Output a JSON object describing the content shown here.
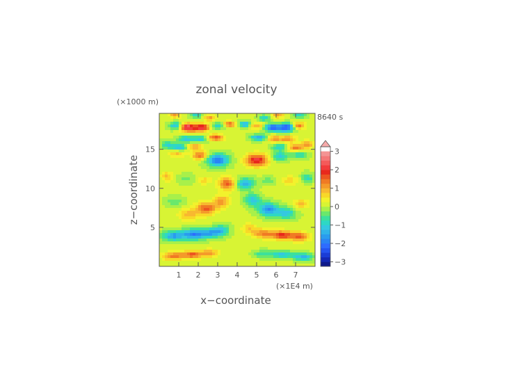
{
  "chart_data": {
    "type": "heatmap",
    "title": "zonal velocity",
    "time_label": "8640 s",
    "xlabel": "x−coordinate",
    "ylabel": "z−coordinate",
    "x_unit": "(×1E4 m)",
    "y_unit": "(×1000 m)",
    "xlim": [
      0,
      8
    ],
    "ylim": [
      0,
      19.6
    ],
    "x_ticks": [
      1,
      2,
      3,
      4,
      5,
      6,
      7
    ],
    "y_ticks": [
      5,
      10,
      15
    ],
    "colorbar": {
      "levels": [
        -3.25,
        -3,
        -2.75,
        -2.5,
        -2.25,
        -2,
        -1.75,
        -1.5,
        -1.25,
        -1,
        -0.75,
        -0.5,
        -0.25,
        0,
        0.25,
        0.5,
        0.75,
        1,
        1.25,
        1.5,
        1.75,
        2,
        2.25,
        2.5,
        2.75,
        3,
        3.25,
        3.5
      ],
      "colors": [
        "#101a8c",
        "#1428b4",
        "#1a3cd6",
        "#2454f0",
        "#2e6cff",
        "#2a84f4",
        "#2a9cee",
        "#30b4e8",
        "#34c8e0",
        "#2ed8c4",
        "#3ce09c",
        "#6ae86c",
        "#a8f04a",
        "#d8f434",
        "#f2f22c",
        "#f8d828",
        "#f8b830",
        "#f49a2a",
        "#f07a24",
        "#ec5420",
        "#e8281c",
        "#f23c3c",
        "#f45a5a",
        "#f47878",
        "#f49494",
        "#f6aaaa"
      ],
      "tick_values": [
        3,
        2,
        1,
        0,
        -1,
        -2,
        -3
      ],
      "tick_labels": [
        "3",
        "2",
        "1",
        "0",
        "−1",
        "−2",
        "−3"
      ],
      "extend_max": true
    },
    "anomalies": [
      {
        "x": 0.7,
        "z": 1.3,
        "sx": 0.55,
        "sz": 0.5,
        "u": 1.3
      },
      {
        "x": 1.7,
        "z": 1.5,
        "sx": 0.55,
        "sz": 0.5,
        "u": 1.5
      },
      {
        "x": 2.6,
        "z": 1.7,
        "sx": 0.45,
        "sz": 0.5,
        "u": 1.0
      },
      {
        "x": 0.7,
        "z": 3.9,
        "sx": 0.55,
        "sz": 0.6,
        "u": -1.6
      },
      {
        "x": 1.8,
        "z": 4.1,
        "sx": 0.65,
        "sz": 0.65,
        "u": -2.0
      },
      {
        "x": 2.8,
        "z": 4.3,
        "sx": 0.55,
        "sz": 0.6,
        "u": -1.4
      },
      {
        "x": 3.2,
        "z": 4.8,
        "sx": 0.4,
        "sz": 0.6,
        "u": -0.8
      },
      {
        "x": 1.5,
        "z": 6.6,
        "sx": 0.5,
        "sz": 0.7,
        "u": 0.9
      },
      {
        "x": 2.4,
        "z": 7.4,
        "sx": 0.5,
        "sz": 0.8,
        "u": 1.6
      },
      {
        "x": 3.2,
        "z": 8.3,
        "sx": 0.4,
        "sz": 0.8,
        "u": 1.1
      },
      {
        "x": 3.5,
        "z": 10.6,
        "sx": 0.45,
        "sz": 0.8,
        "u": 1.5
      },
      {
        "x": 0.8,
        "z": 8.3,
        "sx": 0.45,
        "sz": 0.6,
        "u": -0.5
      },
      {
        "x": 1.4,
        "z": 11.2,
        "sx": 0.45,
        "sz": 0.6,
        "u": -0.4
      },
      {
        "x": 0.4,
        "z": 11.5,
        "sx": 0.3,
        "sz": 0.6,
        "u": 0.8
      },
      {
        "x": 2.3,
        "z": 11.0,
        "sx": 0.35,
        "sz": 0.5,
        "u": 0.6
      },
      {
        "x": 0.9,
        "z": 14.5,
        "sx": 0.4,
        "sz": 0.55,
        "u": 0.8
      },
      {
        "x": 2.1,
        "z": 14.2,
        "sx": 0.4,
        "sz": 0.55,
        "u": 1.4
      },
      {
        "x": 3.0,
        "z": 13.6,
        "sx": 0.55,
        "sz": 0.8,
        "u": -2.0
      },
      {
        "x": 0.4,
        "z": 15.6,
        "sx": 0.3,
        "sz": 0.5,
        "u": -1.0
      },
      {
        "x": 1.0,
        "z": 15.2,
        "sx": 0.4,
        "sz": 0.45,
        "u": -1.5
      },
      {
        "x": 1.8,
        "z": 15.3,
        "sx": 0.4,
        "sz": 0.5,
        "u": 1.0
      },
      {
        "x": 1.4,
        "z": 16.3,
        "sx": 0.4,
        "sz": 0.45,
        "u": -1.2
      },
      {
        "x": 2.1,
        "z": 16.3,
        "sx": 0.35,
        "sz": 0.45,
        "u": -1.1
      },
      {
        "x": 2.9,
        "z": 16.5,
        "sx": 0.4,
        "sz": 0.4,
        "u": 1.6
      },
      {
        "x": 1.6,
        "z": 17.4,
        "sx": 0.45,
        "sz": 0.45,
        "u": 0.8
      },
      {
        "x": 0.9,
        "z": 18.0,
        "sx": 0.35,
        "sz": 0.45,
        "u": -1.5
      },
      {
        "x": 1.4,
        "z": 17.9,
        "sx": 0.4,
        "sz": 0.45,
        "u": 2.3
      },
      {
        "x": 2.2,
        "z": 17.8,
        "sx": 0.4,
        "sz": 0.45,
        "u": 2.2
      },
      {
        "x": 3.0,
        "z": 18.0,
        "sx": 0.4,
        "sz": 0.4,
        "u": -1.0
      },
      {
        "x": 3.6,
        "z": 18.2,
        "sx": 0.3,
        "sz": 0.4,
        "u": 1.5
      },
      {
        "x": 0.8,
        "z": 19.4,
        "sx": 0.3,
        "sz": 0.4,
        "u": 1.0
      },
      {
        "x": 1.9,
        "z": 19.4,
        "sx": 0.3,
        "sz": 0.4,
        "u": -1.0
      },
      {
        "x": 2.6,
        "z": 19.0,
        "sx": 0.3,
        "sz": 0.4,
        "u": 1.0
      },
      {
        "x": 7.4,
        "z": 1.2,
        "sx": 0.5,
        "sz": 0.45,
        "u": -1.4
      },
      {
        "x": 6.3,
        "z": 1.5,
        "sx": 0.6,
        "sz": 0.45,
        "u": -1.2
      },
      {
        "x": 5.3,
        "z": 1.6,
        "sx": 0.45,
        "sz": 0.45,
        "u": -0.7
      },
      {
        "x": 7.2,
        "z": 3.8,
        "sx": 0.5,
        "sz": 0.6,
        "u": 1.4
      },
      {
        "x": 6.3,
        "z": 4.0,
        "sx": 0.55,
        "sz": 0.55,
        "u": 1.8
      },
      {
        "x": 5.3,
        "z": 4.2,
        "sx": 0.55,
        "sz": 0.6,
        "u": 1.2
      },
      {
        "x": 4.6,
        "z": 4.9,
        "sx": 0.35,
        "sz": 0.6,
        "u": 0.7
      },
      {
        "x": 6.5,
        "z": 6.8,
        "sx": 0.5,
        "sz": 0.7,
        "u": -1.2
      },
      {
        "x": 5.6,
        "z": 7.3,
        "sx": 0.5,
        "sz": 0.8,
        "u": -1.8
      },
      {
        "x": 4.8,
        "z": 8.5,
        "sx": 0.4,
        "sz": 0.8,
        "u": -1.2
      },
      {
        "x": 4.4,
        "z": 10.6,
        "sx": 0.45,
        "sz": 0.7,
        "u": -1.5
      },
      {
        "x": 7.3,
        "z": 8.0,
        "sx": 0.4,
        "sz": 0.6,
        "u": 0.8
      },
      {
        "x": 6.7,
        "z": 11.0,
        "sx": 0.45,
        "sz": 0.6,
        "u": 0.6
      },
      {
        "x": 7.6,
        "z": 11.3,
        "sx": 0.3,
        "sz": 0.6,
        "u": -0.9
      },
      {
        "x": 5.6,
        "z": 11.0,
        "sx": 0.35,
        "sz": 0.5,
        "u": -0.5
      },
      {
        "x": 5.0,
        "z": 13.6,
        "sx": 0.55,
        "sz": 0.8,
        "u": 2.1
      },
      {
        "x": 6.2,
        "z": 14.1,
        "sx": 0.4,
        "sz": 0.55,
        "u": -1.2
      },
      {
        "x": 7.2,
        "z": 14.3,
        "sx": 0.4,
        "sz": 0.55,
        "u": -0.8
      },
      {
        "x": 7.6,
        "z": 15.6,
        "sx": 0.3,
        "sz": 0.5,
        "u": 1.1
      },
      {
        "x": 7.0,
        "z": 15.2,
        "sx": 0.4,
        "sz": 0.45,
        "u": 1.4
      },
      {
        "x": 6.2,
        "z": 15.3,
        "sx": 0.4,
        "sz": 0.5,
        "u": -1.0
      },
      {
        "x": 6.6,
        "z": 16.3,
        "sx": 0.4,
        "sz": 0.45,
        "u": 1.2
      },
      {
        "x": 5.9,
        "z": 16.3,
        "sx": 0.35,
        "sz": 0.45,
        "u": 1.1
      },
      {
        "x": 5.1,
        "z": 16.5,
        "sx": 0.4,
        "sz": 0.4,
        "u": -1.6
      },
      {
        "x": 6.4,
        "z": 17.4,
        "sx": 0.45,
        "sz": 0.45,
        "u": -0.9
      },
      {
        "x": 7.1,
        "z": 18.0,
        "sx": 0.35,
        "sz": 0.45,
        "u": 1.6
      },
      {
        "x": 6.6,
        "z": 17.9,
        "sx": 0.4,
        "sz": 0.45,
        "u": -2.3
      },
      {
        "x": 5.8,
        "z": 17.8,
        "sx": 0.4,
        "sz": 0.45,
        "u": -2.2
      },
      {
        "x": 5.0,
        "z": 18.0,
        "sx": 0.4,
        "sz": 0.4,
        "u": 1.0
      },
      {
        "x": 4.4,
        "z": 18.2,
        "sx": 0.3,
        "sz": 0.4,
        "u": -1.5
      },
      {
        "x": 7.2,
        "z": 19.4,
        "sx": 0.3,
        "sz": 0.4,
        "u": -1.0
      },
      {
        "x": 6.1,
        "z": 19.4,
        "sx": 0.3,
        "sz": 0.4,
        "u": 1.0
      },
      {
        "x": 5.4,
        "z": 19.0,
        "sx": 0.3,
        "sz": 0.4,
        "u": -1.0
      }
    ]
  }
}
